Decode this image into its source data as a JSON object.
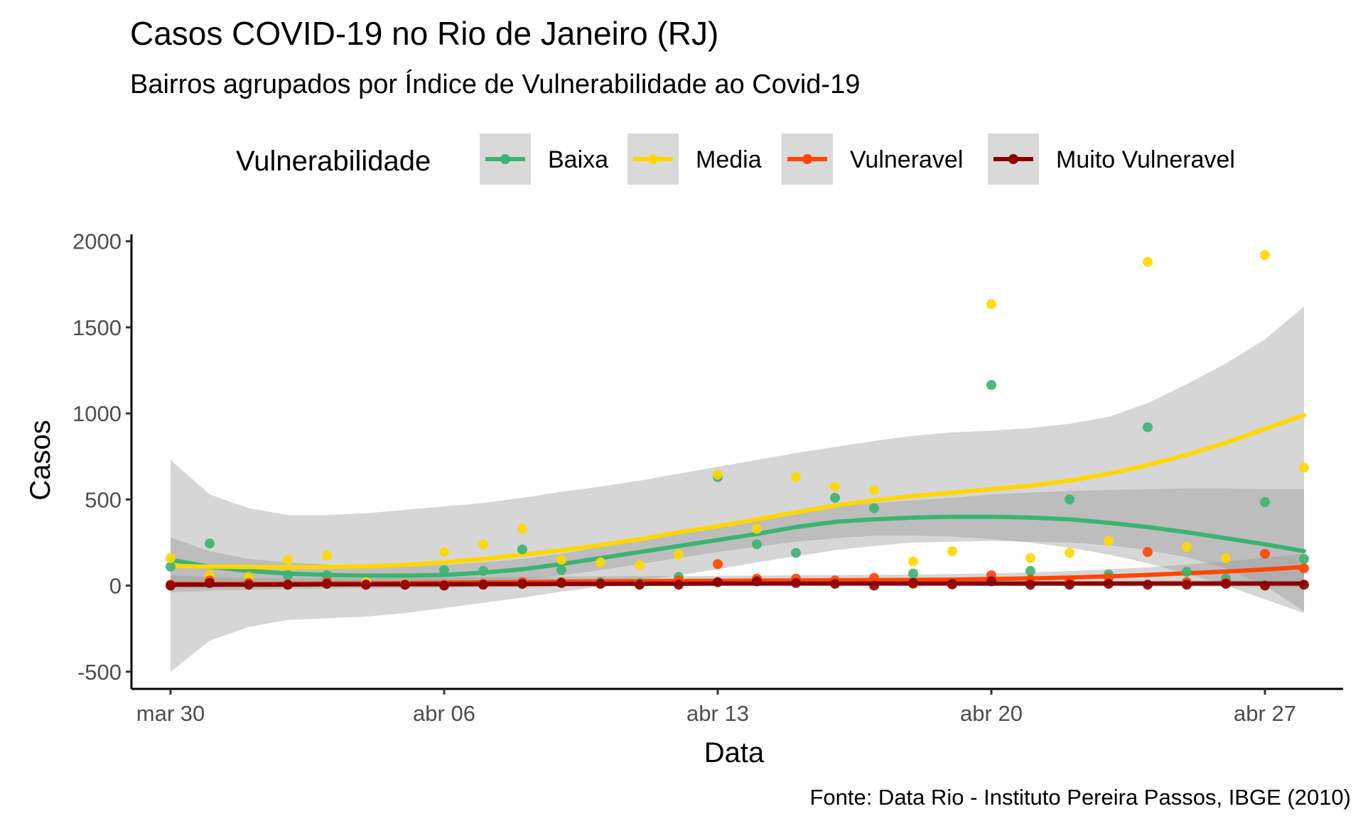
{
  "chart_data": {
    "type": "scatter",
    "title": "Casos COVID-19 no Rio de Janeiro (RJ)",
    "subtitle": "Bairros agrupados por Índice de Vulnerabilidade ao Covid-19",
    "xlabel": "Data",
    "ylabel": "Casos",
    "caption": "Fonte: Data Rio - Instituto Pereira Passos, IBGE (2010)",
    "legend_title": "Vulnerabilidade",
    "legend_position": "top",
    "grid": false,
    "smooth": true,
    "ylim": [
      -600,
      2040
    ],
    "xlim": [
      "2020-03-29",
      "2020-04-29"
    ],
    "x_ticks": [
      {
        "date": "2020-03-30",
        "label": "mar 30"
      },
      {
        "date": "2020-04-06",
        "label": "abr 06"
      },
      {
        "date": "2020-04-13",
        "label": "abr 13"
      },
      {
        "date": "2020-04-20",
        "label": "abr 20"
      },
      {
        "date": "2020-04-27",
        "label": "abr 27"
      }
    ],
    "y_ticks": [
      {
        "value": 2000,
        "label": "2000"
      },
      {
        "value": 1500,
        "label": "1500"
      },
      {
        "value": 1000,
        "label": "1000"
      },
      {
        "value": 500,
        "label": "500"
      },
      {
        "value": 0,
        "label": "0"
      },
      {
        "value": -500,
        "label": "-500"
      }
    ],
    "x": [
      "2020-03-30",
      "2020-03-31",
      "2020-04-01",
      "2020-04-02",
      "2020-04-03",
      "2020-04-04",
      "2020-04-05",
      "2020-04-06",
      "2020-04-07",
      "2020-04-08",
      "2020-04-09",
      "2020-04-10",
      "2020-04-11",
      "2020-04-12",
      "2020-04-13",
      "2020-04-14",
      "2020-04-15",
      "2020-04-16",
      "2020-04-17",
      "2020-04-18",
      "2020-04-19",
      "2020-04-20",
      "2020-04-21",
      "2020-04-22",
      "2020-04-23",
      "2020-04-24",
      "2020-04-25",
      "2020-04-26",
      "2020-04-27",
      "2020-04-28"
    ],
    "series": [
      {
        "name": "Baixa",
        "color": "#3cb371",
        "values": [
          110,
          245,
          50,
          60,
          60,
          10,
          5,
          90,
          85,
          210,
          90,
          20,
          15,
          50,
          630,
          240,
          190,
          510,
          450,
          70,
          10,
          1165,
          85,
          500,
          65,
          920,
          80,
          40,
          485,
          155
        ],
        "smooth": [
          150,
          110,
          85,
          70,
          62,
          58,
          58,
          62,
          75,
          95,
          125,
          160,
          195,
          230,
          265,
          300,
          340,
          370,
          385,
          395,
          400,
          400,
          395,
          385,
          365,
          340,
          310,
          275,
          240,
          200
        ],
        "smooth_ci": [
          [
            25,
            280
          ],
          [
            20,
            200
          ],
          [
            15,
            155
          ],
          [
            10,
            135
          ],
          [
            8,
            122
          ],
          [
            7,
            115
          ],
          [
            7,
            115
          ],
          [
            10,
            120
          ],
          [
            20,
            135
          ],
          [
            35,
            155
          ],
          [
            60,
            185
          ],
          [
            90,
            225
          ],
          [
            125,
            265
          ],
          [
            160,
            300
          ],
          [
            195,
            335
          ],
          [
            225,
            375
          ],
          [
            255,
            420
          ],
          [
            275,
            460
          ],
          [
            290,
            480
          ],
          [
            290,
            495
          ],
          [
            285,
            510
          ],
          [
            270,
            530
          ],
          [
            250,
            540
          ],
          [
            220,
            550
          ],
          [
            180,
            555
          ],
          [
            130,
            560
          ],
          [
            70,
            565
          ],
          [
            0,
            565
          ],
          [
            -80,
            560
          ],
          [
            -160,
            560
          ]
        ]
      },
      {
        "name": "Media",
        "color": "#ffd700",
        "values": [
          160,
          60,
          50,
          150,
          175,
          20,
          10,
          195,
          240,
          330,
          150,
          135,
          120,
          180,
          645,
          330,
          630,
          575,
          555,
          140,
          200,
          1635,
          160,
          190,
          260,
          1880,
          225,
          160,
          1920,
          685
        ],
        "smooth": [
          115,
          110,
          108,
          106,
          108,
          112,
          120,
          135,
          155,
          180,
          205,
          235,
          270,
          310,
          345,
          385,
          425,
          465,
          495,
          520,
          540,
          560,
          580,
          610,
          650,
          700,
          760,
          830,
          910,
          990
        ],
        "smooth_ci": [
          [
            -500,
            730
          ],
          [
            -320,
            530
          ],
          [
            -240,
            450
          ],
          [
            -200,
            410
          ],
          [
            -190,
            410
          ],
          [
            -180,
            420
          ],
          [
            -160,
            440
          ],
          [
            -130,
            460
          ],
          [
            -100,
            480
          ],
          [
            -70,
            510
          ],
          [
            -35,
            545
          ],
          [
            -5,
            575
          ],
          [
            30,
            610
          ],
          [
            60,
            650
          ],
          [
            95,
            690
          ],
          [
            135,
            730
          ],
          [
            170,
            770
          ],
          [
            205,
            805
          ],
          [
            230,
            840
          ],
          [
            250,
            870
          ],
          [
            255,
            890
          ],
          [
            260,
            900
          ],
          [
            255,
            915
          ],
          [
            250,
            940
          ],
          [
            235,
            980
          ],
          [
            205,
            1060
          ],
          [
            165,
            1170
          ],
          [
            100,
            1290
          ],
          [
            0,
            1430
          ],
          [
            -150,
            1620
          ]
        ]
      },
      {
        "name": "Vulneravel",
        "color": "#ff4500",
        "values": [
          5,
          30,
          15,
          5,
          20,
          5,
          5,
          5,
          10,
          20,
          20,
          15,
          10,
          30,
          125,
          40,
          40,
          30,
          45,
          10,
          5,
          60,
          35,
          30,
          45,
          195,
          20,
          15,
          185,
          100
        ],
        "smooth": [
          10,
          10,
          10,
          11,
          12,
          13,
          15,
          17,
          19,
          21,
          23,
          25,
          26,
          27,
          28,
          29,
          30,
          31,
          32,
          33,
          35,
          38,
          42,
          47,
          54,
          62,
          72,
          82,
          94,
          108
        ],
        "smooth_ci": [
          [
            -40,
            60
          ],
          [
            -30,
            50
          ],
          [
            -25,
            45
          ],
          [
            -20,
            42
          ],
          [
            -18,
            42
          ],
          [
            -16,
            42
          ],
          [
            -14,
            44
          ],
          [
            -12,
            46
          ],
          [
            -10,
            48
          ],
          [
            -8,
            50
          ],
          [
            -6,
            52
          ],
          [
            -4,
            54
          ],
          [
            -3,
            55
          ],
          [
            -2,
            56
          ],
          [
            -1,
            57
          ],
          [
            0,
            58
          ],
          [
            0,
            60
          ],
          [
            1,
            61
          ],
          [
            1,
            63
          ],
          [
            2,
            64
          ],
          [
            3,
            67
          ],
          [
            5,
            71
          ],
          [
            7,
            77
          ],
          [
            10,
            84
          ],
          [
            14,
            94
          ],
          [
            18,
            106
          ],
          [
            22,
            122
          ],
          [
            25,
            139
          ],
          [
            27,
            161
          ],
          [
            30,
            186
          ]
        ]
      },
      {
        "name": "Muito Vulneravel",
        "color": "#8b0000",
        "values": [
          0,
          15,
          5,
          5,
          10,
          5,
          5,
          0,
          5,
          10,
          15,
          10,
          5,
          5,
          20,
          25,
          15,
          10,
          0,
          15,
          10,
          25,
          5,
          5,
          10,
          5,
          5,
          10,
          0,
          5
        ],
        "smooth": [
          5,
          5,
          6,
          6,
          7,
          7,
          8,
          8,
          9,
          9,
          10,
          10,
          11,
          11,
          12,
          12,
          12,
          12,
          12,
          12,
          12,
          12,
          12,
          12,
          12,
          12,
          12,
          12,
          12,
          12
        ],
        "smooth_ci": [
          [
            -15,
            25
          ],
          [
            -12,
            22
          ],
          [
            -10,
            22
          ],
          [
            -9,
            21
          ],
          [
            -8,
            22
          ],
          [
            -7,
            21
          ],
          [
            -6,
            22
          ],
          [
            -5,
            21
          ],
          [
            -4,
            22
          ],
          [
            -4,
            22
          ],
          [
            -3,
            23
          ],
          [
            -3,
            23
          ],
          [
            -2,
            24
          ],
          [
            -2,
            24
          ],
          [
            -1,
            25
          ],
          [
            -1,
            25
          ],
          [
            -1,
            25
          ],
          [
            -1,
            25
          ],
          [
            -1,
            25
          ],
          [
            -1,
            25
          ],
          [
            -2,
            26
          ],
          [
            -2,
            26
          ],
          [
            -3,
            27
          ],
          [
            -3,
            27
          ],
          [
            -4,
            28
          ],
          [
            -5,
            29
          ],
          [
            -6,
            30
          ],
          [
            -7,
            31
          ],
          [
            -8,
            32
          ],
          [
            -10,
            34
          ]
        ]
      }
    ]
  }
}
